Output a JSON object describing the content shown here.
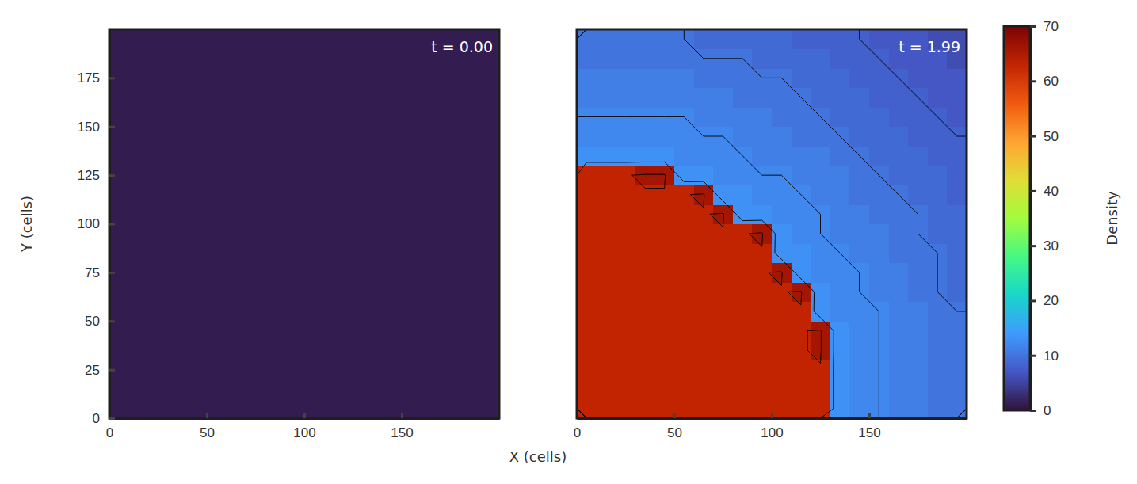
{
  "chart_data": [
    {
      "type": "heatmap",
      "title": "t = 0.00",
      "xlabel": "X (cells)",
      "ylabel": "Y (cells)",
      "xlim": [
        0,
        200
      ],
      "ylim": [
        0,
        200
      ],
      "xticks": [
        0,
        50,
        100,
        150
      ],
      "yticks": [
        0,
        25,
        50,
        75,
        100,
        125,
        150,
        175
      ],
      "cells": [
        [
          1,
          1,
          1,
          1,
          1,
          1,
          1,
          1,
          1,
          1,
          1,
          1,
          1,
          1,
          1,
          1,
          1,
          1,
          1,
          1
        ],
        [
          1,
          1,
          1,
          1,
          1,
          1,
          1,
          1,
          1,
          1,
          1,
          1,
          1,
          1,
          1,
          1,
          1,
          1,
          1,
          1
        ],
        [
          1,
          1,
          1,
          1,
          1,
          1,
          1,
          1,
          1,
          1,
          1,
          1,
          1,
          1,
          1,
          1,
          1,
          1,
          1,
          1
        ],
        [
          1,
          1,
          1,
          1,
          1,
          1,
          1,
          1,
          1,
          1,
          1,
          1,
          1,
          1,
          1,
          1,
          1,
          1,
          1,
          1
        ],
        [
          1,
          1,
          1,
          1,
          1,
          1,
          1,
          1,
          1,
          1,
          1,
          1,
          1,
          1,
          1,
          1,
          1,
          1,
          1,
          1
        ],
        [
          1,
          1,
          1,
          1,
          1,
          1,
          1,
          1,
          1,
          1,
          1,
          1,
          1,
          1,
          1,
          1,
          1,
          1,
          1,
          1
        ],
        [
          1,
          1,
          1,
          1,
          1,
          1,
          1,
          1,
          1,
          1,
          1,
          1,
          1,
          1,
          1,
          1,
          1,
          1,
          1,
          1
        ],
        [
          1,
          1,
          1,
          1,
          1,
          1,
          1,
          1,
          1,
          1,
          1,
          1,
          1,
          1,
          1,
          1,
          1,
          1,
          1,
          1
        ],
        [
          1,
          1,
          1,
          1,
          1,
          1,
          1,
          1,
          1,
          1,
          1,
          1,
          1,
          1,
          1,
          1,
          1,
          1,
          1,
          1
        ],
        [
          1,
          1,
          1,
          1,
          1,
          1,
          1,
          1,
          1,
          1,
          1,
          1,
          1,
          1,
          1,
          1,
          1,
          1,
          1,
          1
        ],
        [
          1,
          1,
          1,
          1,
          1,
          1,
          1,
          1,
          1,
          1,
          1,
          1,
          1,
          1,
          1,
          1,
          1,
          1,
          1,
          1
        ],
        [
          1,
          1,
          1,
          1,
          1,
          1,
          1,
          1,
          1,
          1,
          1,
          1,
          1,
          1,
          1,
          1,
          1,
          1,
          1,
          1
        ],
        [
          1,
          1,
          1,
          1,
          1,
          1,
          1,
          1,
          1,
          1,
          1,
          1,
          1,
          1,
          1,
          1,
          1,
          1,
          1,
          1
        ],
        [
          1,
          1,
          1,
          1,
          1,
          1,
          1,
          1,
          1,
          1,
          1,
          1,
          1,
          1,
          1,
          1,
          1,
          1,
          1,
          1
        ],
        [
          1,
          1,
          1,
          1,
          1,
          1,
          1,
          1,
          1,
          1,
          1,
          1,
          1,
          1,
          1,
          1,
          1,
          1,
          1,
          1
        ],
        [
          1,
          1,
          1,
          1,
          1,
          1,
          1,
          1,
          1,
          1,
          1,
          1,
          1,
          1,
          1,
          1,
          1,
          1,
          1,
          1
        ],
        [
          1,
          1,
          1,
          1,
          1,
          1,
          1,
          1,
          1,
          1,
          1,
          1,
          1,
          1,
          1,
          1,
          1,
          1,
          1,
          1
        ],
        [
          1,
          1,
          1,
          1,
          1,
          1,
          1,
          1,
          1,
          1,
          1,
          1,
          1,
          1,
          1,
          1,
          1,
          1,
          1,
          1
        ],
        [
          1,
          1,
          1,
          1,
          1,
          1,
          1,
          1,
          1,
          1,
          1,
          1,
          1,
          1,
          1,
          1,
          1,
          1,
          1,
          1
        ],
        [
          1,
          1,
          1,
          1,
          1,
          1,
          1,
          1,
          1,
          1,
          1,
          1,
          1,
          1,
          1,
          1,
          1,
          1,
          1,
          1
        ]
      ]
    },
    {
      "type": "heatmap",
      "title": "t = 1.99",
      "tick_labels": "x",
      "xlim": [
        0,
        200
      ],
      "ylim": [
        0,
        200
      ],
      "xticks": [
        0,
        50,
        100,
        150
      ],
      "yticks": [
        0,
        25,
        50,
        75,
        100,
        125,
        150,
        175
      ],
      "contours": [
        8,
        10,
        12,
        30,
        64
      ],
      "colorbar": {
        "label": "Density",
        "range": [
          0,
          70
        ],
        "ticks": [
          0,
          10,
          20,
          30,
          40,
          50,
          60,
          70
        ]
      },
      "cells": [
        [
          63,
          63,
          63,
          63,
          63,
          63,
          63,
          63,
          63,
          63,
          63,
          63,
          63,
          13,
          12,
          12,
          11,
          11,
          10,
          10
        ],
        [
          63,
          63,
          63,
          63,
          63,
          63,
          63,
          63,
          63,
          63,
          63,
          63,
          63,
          13,
          12,
          12,
          11,
          11,
          10,
          10
        ],
        [
          63,
          63,
          63,
          63,
          63,
          63,
          63,
          63,
          63,
          63,
          63,
          63,
          63,
          13,
          12,
          12,
          11,
          11,
          10,
          10
        ],
        [
          63,
          63,
          63,
          63,
          63,
          63,
          63,
          63,
          63,
          63,
          63,
          63,
          66,
          13,
          12,
          12,
          11,
          11,
          10,
          10
        ],
        [
          63,
          63,
          63,
          63,
          63,
          63,
          63,
          63,
          63,
          63,
          63,
          63,
          66,
          13,
          12,
          12,
          11,
          11,
          10,
          10
        ],
        [
          63,
          63,
          63,
          63,
          63,
          63,
          63,
          63,
          63,
          63,
          63,
          63,
          13,
          12,
          12,
          12,
          11,
          11,
          10,
          10
        ],
        [
          63,
          63,
          63,
          63,
          63,
          63,
          63,
          63,
          63,
          63,
          63,
          66,
          13,
          12,
          12,
          11,
          11,
          10,
          10,
          9
        ],
        [
          63,
          63,
          63,
          63,
          63,
          63,
          63,
          63,
          63,
          63,
          66,
          13,
          12,
          12,
          12,
          11,
          11,
          10,
          10,
          9
        ],
        [
          63,
          63,
          63,
          63,
          63,
          63,
          63,
          63,
          63,
          63,
          13,
          13,
          12,
          12,
          11,
          11,
          10,
          10,
          10,
          9
        ],
        [
          63,
          63,
          63,
          63,
          63,
          63,
          63,
          63,
          63,
          66,
          13,
          12,
          12,
          11,
          11,
          11,
          10,
          10,
          9,
          9
        ],
        [
          63,
          63,
          63,
          63,
          63,
          63,
          63,
          66,
          13,
          13,
          12,
          12,
          12,
          11,
          11,
          10,
          10,
          10,
          9,
          9
        ],
        [
          63,
          63,
          63,
          63,
          63,
          63,
          66,
          13,
          13,
          12,
          12,
          12,
          11,
          11,
          10,
          10,
          10,
          9,
          9,
          8
        ],
        [
          63,
          63,
          63,
          66,
          66,
          13,
          13,
          12,
          12,
          12,
          12,
          11,
          11,
          11,
          10,
          10,
          9,
          9,
          9,
          8
        ],
        [
          13,
          13,
          13,
          13,
          13,
          12,
          12,
          12,
          12,
          11,
          11,
          11,
          11,
          10,
          10,
          9,
          9,
          9,
          8,
          8
        ],
        [
          12,
          12,
          12,
          12,
          12,
          12,
          12,
          12,
          11,
          11,
          11,
          10,
          10,
          10,
          9,
          9,
          9,
          8,
          8,
          8
        ],
        [
          12,
          12,
          12,
          12,
          12,
          12,
          11,
          11,
          11,
          11,
          10,
          10,
          10,
          9,
          9,
          9,
          8,
          8,
          8,
          7
        ],
        [
          11,
          11,
          11,
          11,
          11,
          11,
          11,
          11,
          10,
          10,
          10,
          10,
          9,
          9,
          9,
          8,
          8,
          8,
          7,
          7
        ],
        [
          11,
          11,
          11,
          11,
          11,
          11,
          10,
          10,
          10,
          10,
          10,
          9,
          9,
          9,
          8,
          8,
          8,
          7,
          7,
          7
        ],
        [
          10,
          10,
          10,
          10,
          10,
          10,
          10,
          10,
          10,
          9,
          9,
          9,
          9,
          8,
          8,
          8,
          7,
          7,
          7,
          6
        ],
        [
          10,
          10,
          10,
          10,
          10,
          10,
          9,
          9,
          9,
          9,
          9,
          8,
          8,
          8,
          8,
          7,
          7,
          7,
          6,
          6
        ]
      ]
    }
  ]
}
